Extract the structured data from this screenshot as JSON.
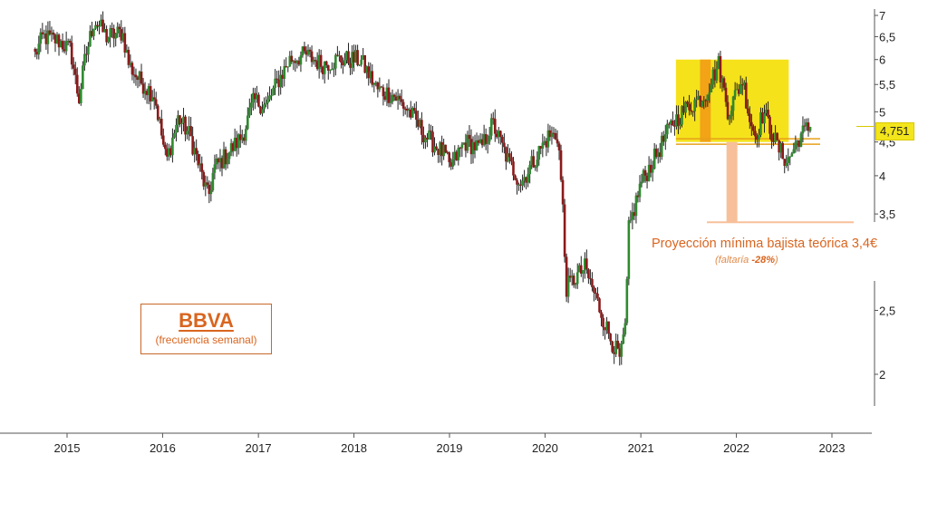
{
  "chart_data": {
    "type": "candlestick",
    "title": "BBVA",
    "subtitle": "(frecuencia semanal)",
    "y_axis": {
      "scale": "log",
      "ticks": [
        {
          "value": 7,
          "label": "7"
        },
        {
          "value": 6.5,
          "label": "6,5"
        },
        {
          "value": 6,
          "label": "6"
        },
        {
          "value": 5.5,
          "label": "5,5"
        },
        {
          "value": 5,
          "label": "5"
        },
        {
          "value": 4.5,
          "label": "4,5"
        },
        {
          "value": 4,
          "label": "4"
        },
        {
          "value": 3.5,
          "label": "3,5"
        },
        {
          "value": 2.5,
          "label": "2,5"
        },
        {
          "value": 2,
          "label": "2"
        }
      ],
      "ylim": [
        1.8,
        7.2
      ]
    },
    "x_axis": {
      "ticks": [
        "2015",
        "2016",
        "2017",
        "2018",
        "2019",
        "2020",
        "2021",
        "2022",
        "2023"
      ],
      "range": [
        "2014-09-01",
        "2023-04-01"
      ]
    },
    "series": [
      {
        "frequency": "weekly",
        "points": [
          [
            "2014-09-01",
            6.1
          ],
          [
            "2014-10-01",
            6.5
          ],
          [
            "2014-12-01",
            6.4
          ],
          [
            "2015-01-15",
            6.2
          ],
          [
            "2015-02-15",
            5.2
          ],
          [
            "2015-03-10",
            6.0
          ],
          [
            "2015-04-15",
            6.9
          ],
          [
            "2015-06-01",
            6.5
          ],
          [
            "2015-08-01",
            6.6
          ],
          [
            "2015-08-25",
            5.9
          ],
          [
            "2015-10-01",
            5.6
          ],
          [
            "2015-12-01",
            5.3
          ],
          [
            "2016-01-15",
            4.2
          ],
          [
            "2016-03-01",
            4.9
          ],
          [
            "2016-04-15",
            4.6
          ],
          [
            "2016-06-24",
            3.7
          ],
          [
            "2016-07-15",
            4.1
          ],
          [
            "2016-09-01",
            4.3
          ],
          [
            "2016-11-01",
            4.6
          ],
          [
            "2016-12-15",
            5.2
          ],
          [
            "2017-02-01",
            5.1
          ],
          [
            "2017-03-10",
            5.5
          ],
          [
            "2017-05-01",
            6.0
          ],
          [
            "2017-07-01",
            6.1
          ],
          [
            "2017-09-01",
            5.9
          ],
          [
            "2017-11-01",
            6.0
          ],
          [
            "2018-01-25",
            6.0
          ],
          [
            "2018-04-01",
            5.4
          ],
          [
            "2018-06-01",
            5.3
          ],
          [
            "2018-08-01",
            5.0
          ],
          [
            "2018-10-01",
            4.6
          ],
          [
            "2018-12-15",
            4.3
          ],
          [
            "2019-01-01",
            4.1
          ],
          [
            "2019-03-01",
            4.5
          ],
          [
            "2019-05-01",
            4.4
          ],
          [
            "2019-06-15",
            4.8
          ],
          [
            "2019-08-15",
            4.2
          ],
          [
            "2019-10-01",
            3.9
          ],
          [
            "2019-12-01",
            4.3
          ],
          [
            "2020-01-15",
            4.6
          ],
          [
            "2020-02-20",
            4.6
          ],
          [
            "2020-03-12",
            3.4
          ],
          [
            "2020-03-20",
            2.7
          ],
          [
            "2020-06-01",
            2.9
          ],
          [
            "2020-07-15",
            2.6
          ],
          [
            "2020-09-01",
            2.3
          ],
          [
            "2020-10-15",
            2.1
          ],
          [
            "2020-11-05",
            2.4
          ],
          [
            "2020-11-15",
            3.3
          ],
          [
            "2021-01-01",
            3.9
          ],
          [
            "2021-03-01",
            4.3
          ],
          [
            "2021-05-01",
            4.8
          ],
          [
            "2021-07-01",
            5.1
          ],
          [
            "2021-09-01",
            5.3
          ],
          [
            "2021-10-25",
            5.9
          ],
          [
            "2021-12-01",
            5.0
          ],
          [
            "2022-01-25",
            5.6
          ],
          [
            "2022-02-20",
            4.9
          ],
          [
            "2022-03-15",
            4.6
          ],
          [
            "2022-04-15",
            5.0
          ],
          [
            "2022-06-10",
            4.4
          ],
          [
            "2022-07-15",
            4.2
          ],
          [
            "2022-09-01",
            4.6
          ],
          [
            "2022-10-10",
            4.75
          ]
        ]
      }
    ],
    "last_price": "4,751",
    "annotations": {
      "projection": "Proyección mínima bajista teórica 3,4€",
      "projection_note_prefix": "(faltaría ",
      "projection_note_value": "-28%",
      "projection_note_suffix": ")",
      "range_box": {
        "x_start": "2021-05-15",
        "x_end": "2022-07-20",
        "y_low": 4.5,
        "y_high": 6.0
      },
      "range_support": 4.55,
      "projection_target": 3.4
    },
    "colors": {
      "up": "#2f8a2f",
      "down": "#8b1a1a",
      "accent": "#d9651f",
      "highlight": "#f5e21b",
      "projection": "#f7c09a"
    }
  }
}
